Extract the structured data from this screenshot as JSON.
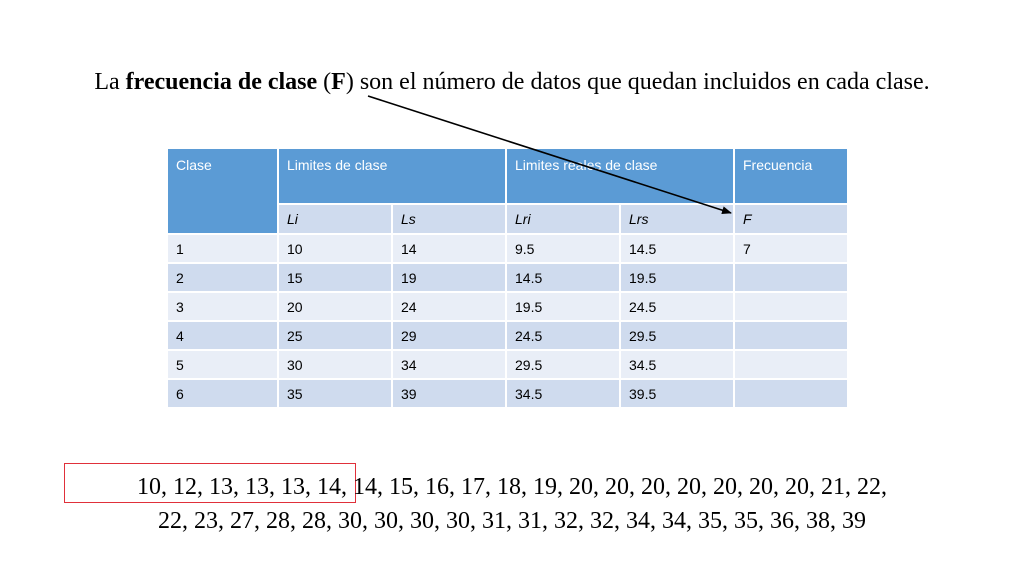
{
  "title": {
    "pre": "La ",
    "bold1": "frecuencia de clase",
    "mid": " (",
    "bold2": "F",
    "post": ") son el número de datos que quedan incluidos en cada clase."
  },
  "table": {
    "headers": {
      "clase": "Clase",
      "limites": "Limites de clase",
      "limites_reales": "Limites reales de clase",
      "frecuencia": "Frecuencia"
    },
    "subheaders": [
      "Li",
      "Ls",
      "Lri",
      "Lrs",
      "F"
    ],
    "rows": [
      [
        "1",
        "10",
        "14",
        "9.5",
        "14.5",
        "7"
      ],
      [
        "2",
        "15",
        "19",
        "14.5",
        "19.5",
        ""
      ],
      [
        "3",
        "20",
        "24",
        "19.5",
        "24.5",
        ""
      ],
      [
        "4",
        "25",
        "29",
        "24.5",
        "29.5",
        ""
      ],
      [
        "5",
        "30",
        "34",
        "29.5",
        "34.5",
        ""
      ],
      [
        "6",
        "35",
        "39",
        "34.5",
        "39.5",
        ""
      ]
    ]
  },
  "data_list": {
    "line1": "10, 12, 13, 13, 13, 14, 14, 15, 16, 17, 18, 19, 20, 20, 20, 20, 20, 20, 20, 21, 22,",
    "line2": "22, 23, 27, 28, 28, 30, 30, 30, 30, 31, 31, 32, 32, 34, 34, 35, 35, 36, 38, 39"
  },
  "colors": {
    "header_bg": "#5b9bd5",
    "row_light": "#e9eef7",
    "row_dark": "#cfdbee",
    "highlight": "#e0303a"
  }
}
